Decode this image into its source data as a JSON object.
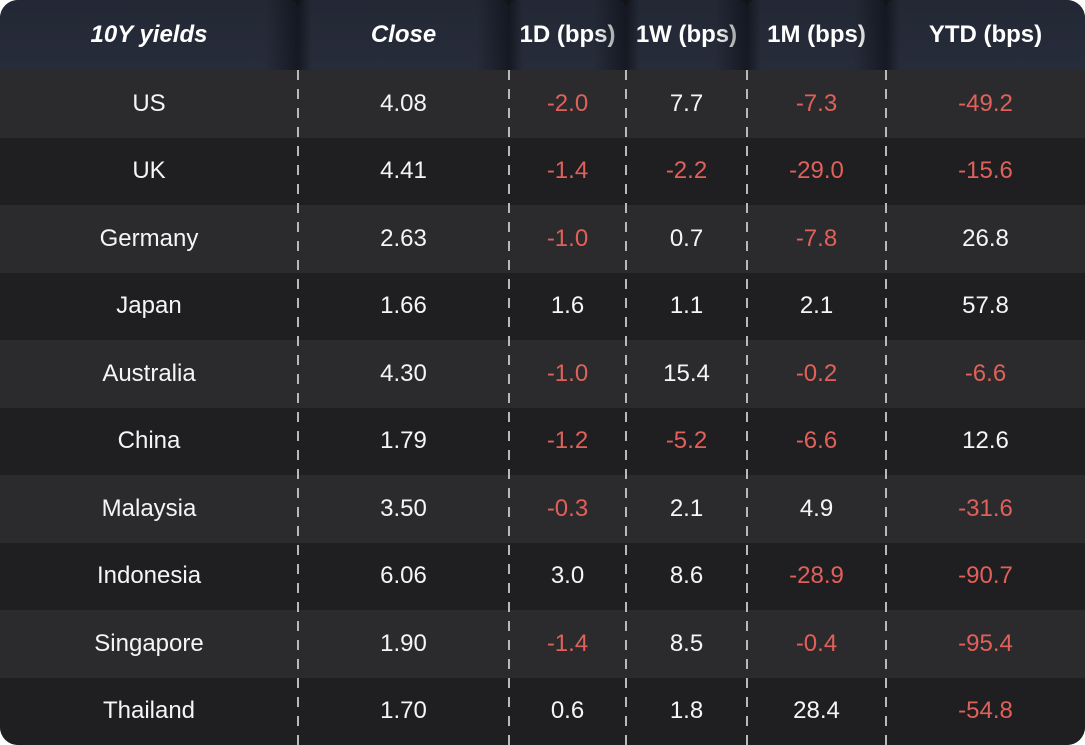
{
  "title": "10Y yields table",
  "colors": {
    "page_bg": "#ffffff",
    "header_bg": "#272c3a",
    "header_bg_top": "#232835",
    "row_odd_bg": "#2b2b2d",
    "row_even_bg": "#1f1f21",
    "text_default": "#f5f5f5",
    "text_negative": "#e0605a",
    "divider": "#b9b9b9"
  },
  "chart_data": {
    "type": "table",
    "title": "10Y yields",
    "columns": [
      "10Y yields",
      "Close",
      "1D (bps)",
      "1W (bps)",
      "1M (bps)",
      "YTD (bps)"
    ],
    "italic_columns": [
      0,
      1
    ],
    "negative_values_colored": "red",
    "rows": [
      [
        "US",
        "4.08",
        "-2.0",
        "7.7",
        "-7.3",
        "-49.2"
      ],
      [
        "UK",
        "4.41",
        "-1.4",
        "-2.2",
        "-29.0",
        "-15.6"
      ],
      [
        "Germany",
        "2.63",
        "-1.0",
        "0.7",
        "-7.8",
        "26.8"
      ],
      [
        "Japan",
        "1.66",
        "1.6",
        "1.1",
        "2.1",
        "57.8"
      ],
      [
        "Australia",
        "4.30",
        "-1.0",
        "15.4",
        "-0.2",
        "-6.6"
      ],
      [
        "China",
        "1.79",
        "-1.2",
        "-5.2",
        "-6.6",
        "12.6"
      ],
      [
        "Malaysia",
        "3.50",
        "-0.3",
        "2.1",
        "4.9",
        "-31.6"
      ],
      [
        "Indonesia",
        "6.06",
        "3.0",
        "8.6",
        "-28.9",
        "-90.7"
      ],
      [
        "Singapore",
        "1.90",
        "-1.4",
        "8.5",
        "-0.4",
        "-95.4"
      ],
      [
        "Thailand",
        "1.70",
        "0.6",
        "1.8",
        "28.4",
        "-54.8"
      ]
    ]
  }
}
